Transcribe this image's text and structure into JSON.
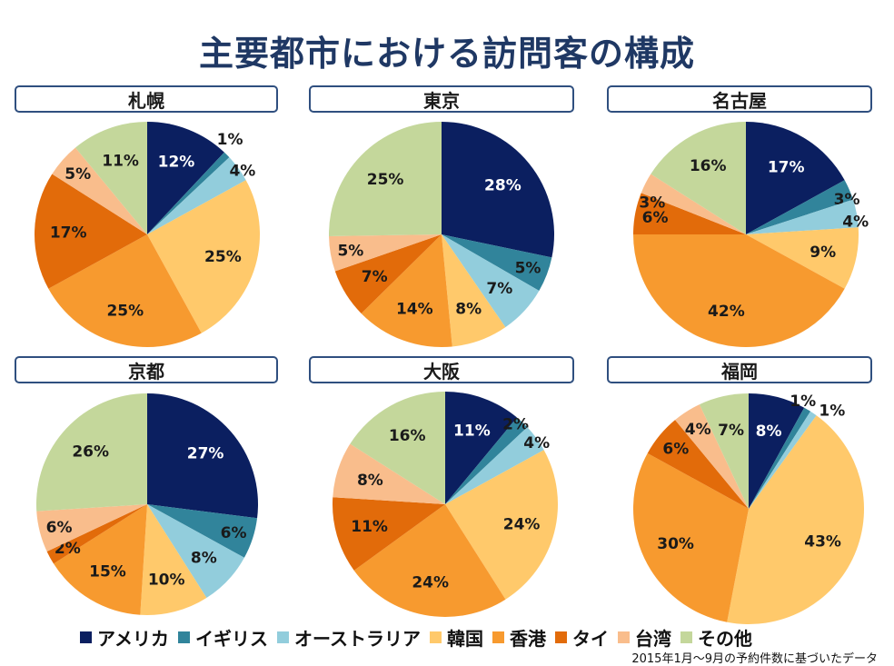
{
  "title": "主要都市における訪問客の構成",
  "legend": {
    "items": [
      {
        "label": "アメリカ",
        "color": "#0b1f60"
      },
      {
        "label": "イギリス",
        "color": "#31849b"
      },
      {
        "label": "オーストラリア",
        "color": "#92cddc"
      },
      {
        "label": "韓国",
        "color": "#ffc96b"
      },
      {
        "label": "香港",
        "color": "#f79a2f"
      },
      {
        "label": "タイ",
        "color": "#e26b0a"
      },
      {
        "label": "台湾",
        "color": "#f9bd8c"
      },
      {
        "label": "その他",
        "color": "#c4d79b"
      }
    ]
  },
  "footnote": "2015年1月～9月の予約件数に基づいたデータ",
  "chart_data": [
    {
      "type": "pie",
      "title": "札幌",
      "categories": [
        "アメリカ",
        "イギリス",
        "オーストラリア",
        "韓国",
        "香港",
        "タイ",
        "台湾",
        "その他"
      ],
      "values": [
        12,
        1,
        4,
        25,
        25,
        17,
        5,
        11
      ],
      "labels": [
        "12%",
        "1%",
        "4%",
        "25%",
        "25%",
        "17%",
        "5%",
        "11%"
      ]
    },
    {
      "type": "pie",
      "title": "東京",
      "categories": [
        "アメリカ",
        "イギリス",
        "オーストラリア",
        "韓国",
        "香港",
        "タイ",
        "台湾",
        "その他"
      ],
      "values": [
        28,
        5,
        7,
        8,
        14,
        7,
        5,
        25
      ],
      "labels": [
        "28%",
        "5%",
        "7%",
        "8%",
        "14%",
        "7%",
        "5%",
        "25%"
      ]
    },
    {
      "type": "pie",
      "title": "名古屋",
      "categories": [
        "アメリカ",
        "イギリス",
        "オーストラリア",
        "韓国",
        "香港",
        "タイ",
        "台湾",
        "その他"
      ],
      "values": [
        17,
        3,
        4,
        9,
        42,
        6,
        3,
        16
      ],
      "labels": [
        "17%",
        "3%",
        "4%",
        "9%",
        "42%",
        "6%",
        "3%",
        "16%"
      ]
    },
    {
      "type": "pie",
      "title": "京都",
      "categories": [
        "アメリカ",
        "イギリス",
        "オーストラリア",
        "韓国",
        "香港",
        "タイ",
        "台湾",
        "その他"
      ],
      "values": [
        27,
        6,
        8,
        10,
        15,
        2,
        6,
        26
      ],
      "labels": [
        "27%",
        "6%",
        "8%",
        "10%",
        "15%",
        "2%",
        "6%",
        "26%"
      ]
    },
    {
      "type": "pie",
      "title": "大阪",
      "categories": [
        "アメリカ",
        "イギリス",
        "オーストラリア",
        "韓国",
        "香港",
        "タイ",
        "台湾",
        "その他"
      ],
      "values": [
        11,
        2,
        4,
        24,
        24,
        11,
        8,
        16
      ],
      "labels": [
        "11%",
        "2%",
        "4%",
        "24%",
        "24%",
        "11%",
        "8%",
        "16%"
      ]
    },
    {
      "type": "pie",
      "title": "福岡",
      "categories": [
        "アメリカ",
        "イギリス",
        "オーストラリア",
        "韓国",
        "香港",
        "タイ",
        "台湾",
        "その他"
      ],
      "values": [
        8,
        1,
        1,
        43,
        30,
        6,
        4,
        7
      ],
      "labels": [
        "8%",
        "1%",
        "1%",
        "43%",
        "30%",
        "6%",
        "4%",
        "7%"
      ]
    }
  ]
}
